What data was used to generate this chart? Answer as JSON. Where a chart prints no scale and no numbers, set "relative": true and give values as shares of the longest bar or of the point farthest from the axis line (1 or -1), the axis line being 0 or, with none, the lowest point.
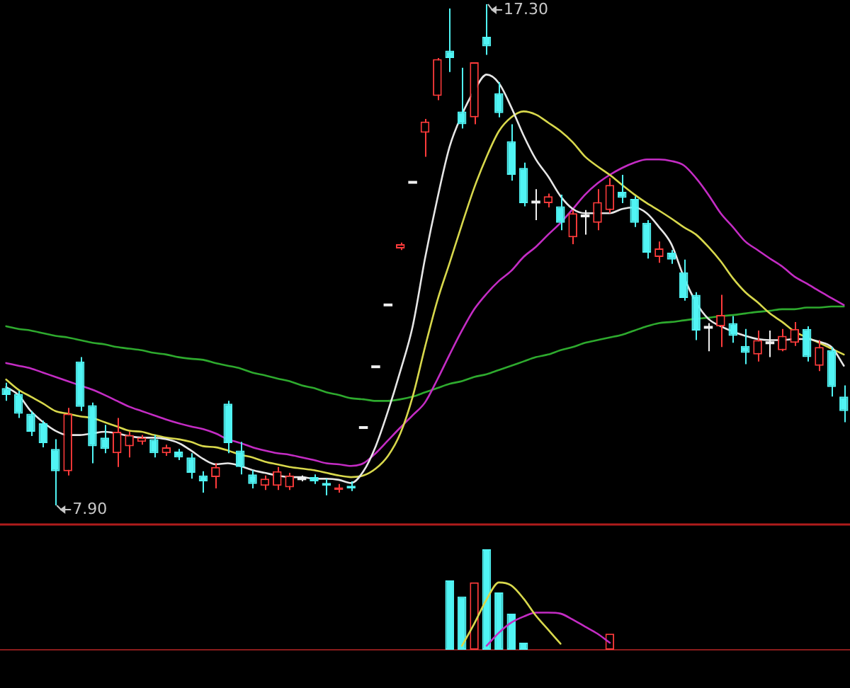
{
  "chart_data": [
    {
      "type": "candlestick",
      "categories": [
        null,
        null,
        null,
        null,
        null,
        null,
        null,
        null,
        null,
        null,
        null,
        null,
        null,
        null,
        null,
        null,
        null,
        null,
        null,
        null,
        null,
        null,
        null,
        null,
        null,
        null,
        null,
        null,
        null,
        null,
        null,
        null,
        null,
        null,
        null,
        null,
        null,
        null,
        null,
        null,
        null,
        null,
        null,
        null,
        null,
        null,
        null,
        null,
        null,
        null,
        null,
        null,
        null,
        null,
        null,
        null,
        null,
        null,
        null,
        null,
        null,
        null,
        null,
        null,
        null,
        null,
        null,
        null,
        null
      ],
      "ohlc": [
        [
          10.1,
          10.2,
          9.86,
          9.97
        ],
        [
          9.99,
          10.05,
          9.54,
          9.62
        ],
        [
          9.62,
          9.67,
          9.2,
          9.28
        ],
        [
          9.44,
          9.49,
          8.99,
          9.07
        ],
        [
          8.96,
          9.14,
          7.9,
          8.54
        ],
        [
          8.54,
          9.73,
          8.46,
          9.62
        ],
        [
          10.6,
          10.68,
          9.67,
          9.75
        ],
        [
          9.78,
          9.83,
          8.69,
          9.01
        ],
        [
          9.17,
          9.41,
          8.88,
          8.96
        ],
        [
          8.88,
          9.54,
          8.62,
          9.28
        ],
        [
          9.01,
          9.28,
          8.8,
          9.22
        ],
        [
          9.09,
          9.22,
          9.04,
          9.17
        ],
        [
          9.14,
          9.22,
          8.8,
          8.88
        ],
        [
          8.88,
          9.04,
          8.83,
          8.99
        ],
        [
          8.91,
          8.96,
          8.75,
          8.8
        ],
        [
          8.8,
          8.88,
          8.4,
          8.51
        ],
        [
          8.46,
          8.54,
          8.14,
          8.35
        ],
        [
          8.43,
          8.69,
          8.22,
          8.62
        ],
        [
          9.81,
          9.86,
          8.88,
          9.07
        ],
        [
          8.93,
          9.09,
          8.48,
          8.62
        ],
        [
          8.48,
          8.56,
          8.22,
          8.3
        ],
        [
          8.27,
          8.46,
          8.19,
          8.4
        ],
        [
          8.27,
          8.62,
          8.19,
          8.54
        ],
        [
          8.24,
          8.51,
          8.19,
          8.46
        ],
        [
          8.4,
          8.46,
          8.35,
          8.4
        ],
        [
          8.43,
          8.48,
          8.3,
          8.35
        ],
        [
          8.32,
          8.4,
          8.09,
          8.27
        ],
        [
          8.19,
          8.3,
          8.14,
          8.24
        ],
        [
          8.27,
          8.35,
          8.17,
          8.22
        ],
        [
          9.36,
          9.36,
          9.36,
          9.36
        ],
        [
          10.5,
          10.5,
          10.5,
          10.5
        ],
        [
          11.66,
          11.66,
          11.66,
          11.66
        ],
        [
          12.72,
          12.83,
          12.69,
          12.8
        ],
        [
          13.96,
          13.96,
          13.96,
          13.96
        ],
        [
          14.89,
          15.15,
          14.44,
          15.1
        ],
        [
          15.58,
          16.29,
          15.5,
          16.27
        ],
        [
          16.43,
          17.22,
          16.03,
          16.29
        ],
        [
          15.29,
          16.11,
          14.97,
          15.05
        ],
        [
          15.18,
          16.21,
          15.05,
          16.21
        ],
        [
          16.69,
          17.3,
          16.35,
          16.51
        ],
        [
          15.63,
          15.84,
          15.18,
          15.26
        ],
        [
          14.73,
          15.05,
          13.99,
          14.1
        ],
        [
          14.23,
          14.33,
          13.51,
          13.57
        ],
        [
          13.59,
          13.83,
          13.25,
          13.59
        ],
        [
          13.57,
          13.75,
          13.49,
          13.7
        ],
        [
          13.51,
          13.73,
          13.06,
          13.2
        ],
        [
          12.93,
          13.44,
          12.8,
          13.38
        ],
        [
          13.33,
          13.44,
          12.98,
          13.33
        ],
        [
          13.2,
          13.83,
          13.06,
          13.59
        ],
        [
          13.44,
          14.04,
          13.38,
          13.91
        ],
        [
          13.78,
          14.1,
          13.57,
          13.67
        ],
        [
          13.65,
          13.7,
          13.12,
          13.2
        ],
        [
          13.2,
          13.25,
          12.53,
          12.64
        ],
        [
          12.56,
          12.85,
          12.45,
          12.72
        ],
        [
          12.64,
          12.69,
          12.43,
          12.51
        ],
        [
          12.27,
          12.51,
          11.74,
          11.79
        ],
        [
          11.85,
          11.9,
          11.0,
          11.18
        ],
        [
          11.24,
          11.32,
          10.79,
          11.24
        ],
        [
          11.26,
          11.85,
          10.87,
          11.47
        ],
        [
          11.32,
          11.45,
          10.95,
          11.08
        ],
        [
          10.89,
          11.21,
          10.55,
          10.76
        ],
        [
          10.73,
          11.18,
          10.6,
          11.0
        ],
        [
          10.95,
          11.18,
          10.68,
          10.95
        ],
        [
          10.81,
          11.21,
          10.79,
          11.08
        ],
        [
          10.95,
          11.34,
          10.89,
          11.21
        ],
        [
          11.21,
          11.26,
          10.6,
          10.68
        ],
        [
          10.52,
          11.0,
          10.42,
          10.87
        ],
        [
          10.81,
          10.87,
          9.94,
          10.12
        ],
        [
          9.94,
          10.15,
          9.46,
          9.67
        ]
      ],
      "colors": [
        "#50f4f4",
        "#50f4f4",
        "#50f4f4",
        "#50f4f4",
        "#50f4f4",
        "#ff3b3b",
        "#50f4f4",
        "#50f4f4",
        "#50f4f4",
        "#ff3b3b",
        "#ff3b3b",
        "#ff3b3b",
        "#50f4f4",
        "#ff3b3b",
        "#50f4f4",
        "#50f4f4",
        "#50f4f4",
        "#ff3b3b",
        "#50f4f4",
        "#50f4f4",
        "#50f4f4",
        "#ff3b3b",
        "#ff3b3b",
        "#ff3b3b",
        "#f0f0f0",
        "#50f4f4",
        "#50f4f4",
        "#ff3b3b",
        "#50f4f4",
        "#f0f0f0",
        "#f0f0f0",
        "#f0f0f0",
        "#ff3b3b",
        "#f0f0f0",
        "#ff3b3b",
        "#ff3b3b",
        "#50f4f4",
        "#50f4f4",
        "#ff3b3b",
        "#50f4f4",
        "#50f4f4",
        "#50f4f4",
        "#50f4f4",
        "#f0f0f0",
        "#ff3b3b",
        "#50f4f4",
        "#ff3b3b",
        "#f0f0f0",
        "#ff3b3b",
        "#ff3b3b",
        "#50f4f4",
        "#50f4f4",
        "#50f4f4",
        "#ff3b3b",
        "#50f4f4",
        "#50f4f4",
        "#50f4f4",
        "#f0f0f0",
        "#ff3b3b",
        "#50f4f4",
        "#50f4f4",
        "#ff3b3b",
        "#f0f0f0",
        "#ff3b3b",
        "#ff3b3b",
        "#50f4f4",
        "#ff3b3b",
        "#50f4f4",
        "#50f4f4"
      ],
      "series": [
        {
          "type": "line",
          "color": "#e6e6e6",
          "values": [
            10.12,
            9.97,
            9.67,
            9.46,
            9.3,
            9.22,
            9.22,
            9.25,
            9.28,
            9.25,
            9.2,
            9.17,
            9.17,
            9.14,
            9.07,
            8.93,
            8.77,
            8.67,
            8.69,
            8.64,
            8.56,
            8.51,
            8.46,
            8.43,
            8.43,
            8.4,
            8.4,
            8.38,
            8.32,
            8.54,
            9.01,
            9.67,
            10.42,
            11.26,
            12.53,
            13.65,
            14.63,
            15.23,
            15.68,
            15.98,
            15.82,
            15.37,
            14.84,
            14.39,
            14.07,
            13.7,
            13.46,
            13.38,
            13.38,
            13.38,
            13.46,
            13.49,
            13.38,
            13.12,
            12.8,
            12.19,
            11.71,
            11.4,
            11.26,
            11.16,
            11.08,
            11.02,
            11.0,
            11.0,
            11.02,
            11.02,
            10.97,
            10.87,
            10.52
          ]
        },
        {
          "type": "line",
          "color": "#d8d84c",
          "values": [
            10.26,
            10.07,
            9.94,
            9.81,
            9.67,
            9.62,
            9.57,
            9.54,
            9.46,
            9.38,
            9.3,
            9.28,
            9.22,
            9.17,
            9.14,
            9.09,
            9.01,
            8.99,
            8.93,
            8.85,
            8.8,
            8.72,
            8.67,
            8.62,
            8.59,
            8.56,
            8.51,
            8.46,
            8.43,
            8.46,
            8.59,
            8.83,
            9.25,
            9.94,
            10.87,
            11.74,
            12.45,
            13.17,
            13.86,
            14.44,
            14.92,
            15.18,
            15.29,
            15.23,
            15.08,
            14.92,
            14.71,
            14.44,
            14.26,
            14.1,
            13.91,
            13.73,
            13.57,
            13.43,
            13.28,
            13.12,
            12.98,
            12.75,
            12.48,
            12.16,
            11.9,
            11.71,
            11.5,
            11.34,
            11.16,
            11.05,
            10.95,
            10.84,
            10.73
          ]
        },
        {
          "type": "line",
          "color": "#c42cc4",
          "values": [
            10.57,
            10.52,
            10.47,
            10.39,
            10.31,
            10.23,
            10.15,
            10.07,
            9.97,
            9.86,
            9.75,
            9.67,
            9.59,
            9.51,
            9.44,
            9.38,
            9.33,
            9.25,
            9.14,
            9.07,
            8.99,
            8.93,
            8.88,
            8.85,
            8.8,
            8.75,
            8.69,
            8.67,
            8.64,
            8.69,
            8.88,
            9.12,
            9.36,
            9.59,
            9.83,
            10.26,
            10.73,
            11.18,
            11.58,
            11.87,
            12.11,
            12.3,
            12.56,
            12.75,
            12.98,
            13.2,
            13.46,
            13.73,
            13.94,
            14.1,
            14.23,
            14.33,
            14.39,
            14.39,
            14.36,
            14.28,
            14.04,
            13.73,
            13.38,
            13.12,
            12.85,
            12.69,
            12.53,
            12.38,
            12.19,
            12.06,
            11.92,
            11.79,
            11.66
          ]
        },
        {
          "type": "line",
          "color": "#2eaa2e",
          "values": [
            11.26,
            11.21,
            11.18,
            11.13,
            11.08,
            11.05,
            11.0,
            10.95,
            10.92,
            10.87,
            10.84,
            10.81,
            10.76,
            10.73,
            10.68,
            10.65,
            10.63,
            10.57,
            10.52,
            10.47,
            10.39,
            10.34,
            10.28,
            10.23,
            10.15,
            10.1,
            10.02,
            9.97,
            9.91,
            9.89,
            9.86,
            9.86,
            9.89,
            9.94,
            10.02,
            10.1,
            10.18,
            10.23,
            10.31,
            10.36,
            10.44,
            10.52,
            10.6,
            10.68,
            10.73,
            10.81,
            10.87,
            10.95,
            11.0,
            11.05,
            11.1,
            11.18,
            11.26,
            11.32,
            11.34,
            11.37,
            11.4,
            11.42,
            11.45,
            11.47,
            11.5,
            11.53,
            11.55,
            11.58,
            11.58,
            11.61,
            11.61,
            11.63,
            11.63
          ]
        }
      ],
      "annotations": [
        "17.30",
        "7.90"
      ]
    },
    {
      "type": "bar",
      "relative": true,
      "categories": [
        null,
        null,
        null,
        null,
        null,
        null,
        null,
        null,
        null,
        null,
        null,
        null,
        null,
        null,
        null,
        null,
        null,
        null,
        null,
        null,
        null,
        null,
        null,
        null,
        null,
        null,
        null,
        null,
        null,
        null,
        null,
        null,
        null,
        null,
        null,
        null,
        null,
        null,
        null,
        null,
        null,
        null,
        null,
        null,
        null,
        null,
        null,
        null,
        null,
        null,
        null,
        null,
        null,
        null,
        null,
        null,
        null,
        null,
        null,
        null,
        null,
        null,
        null,
        null,
        null,
        null,
        null,
        null,
        null
      ],
      "values": [
        null,
        null,
        null,
        null,
        null,
        null,
        null,
        null,
        null,
        null,
        null,
        null,
        null,
        null,
        null,
        null,
        null,
        null,
        null,
        null,
        null,
        null,
        null,
        null,
        null,
        null,
        null,
        null,
        null,
        null,
        null,
        null,
        null,
        null,
        null,
        null,
        0.69,
        0.53,
        0.67,
        1,
        0.57,
        0.36,
        0.07,
        null,
        null,
        null,
        null,
        null,
        null,
        0.16,
        null,
        null,
        null,
        null,
        null,
        null,
        null,
        null,
        null,
        null,
        null,
        null,
        null,
        null,
        null,
        null,
        null,
        null,
        null
      ],
      "colors": [
        "#50f4f4",
        "#50f4f4",
        "#50f4f4",
        "#50f4f4",
        "#50f4f4",
        "#ff3b3b",
        "#50f4f4",
        "#50f4f4",
        "#50f4f4",
        "#ff3b3b",
        "#ff3b3b",
        "#ff3b3b",
        "#50f4f4",
        "#ff3b3b",
        "#50f4f4",
        "#50f4f4",
        "#50f4f4",
        "#ff3b3b",
        "#50f4f4",
        "#50f4f4",
        "#50f4f4",
        "#ff3b3b",
        "#ff3b3b",
        "#ff3b3b",
        "#f0f0f0",
        "#50f4f4",
        "#50f4f4",
        "#ff3b3b",
        "#50f4f4",
        "#f0f0f0",
        "#f0f0f0",
        "#f0f0f0",
        "#ff3b3b",
        "#f0f0f0",
        "#ff3b3b",
        "#ff3b3b",
        "#50f4f4",
        "#50f4f4",
        "#ff3b3b",
        "#50f4f4",
        "#50f4f4",
        "#50f4f4",
        "#50f4f4",
        "#f0f0f0",
        "#ff3b3b",
        "#50f4f4",
        "#ff3b3b",
        "#f0f0f0",
        "#ff3b3b",
        "#ff3b3b",
        "#50f4f4",
        "#50f4f4",
        "#50f4f4",
        "#ff3b3b",
        "#50f4f4",
        "#50f4f4",
        "#50f4f4",
        "#f0f0f0",
        "#ff3b3b",
        "#50f4f4",
        "#50f4f4",
        "#ff3b3b",
        "#f0f0f0",
        "#ff3b3b",
        "#ff3b3b",
        "#50f4f4",
        "#ff3b3b",
        "#50f4f4",
        "#50f4f4"
      ],
      "series": [
        {
          "type": "line",
          "color": "#d8d84c",
          "values": [
            null,
            null,
            null,
            null,
            null,
            null,
            null,
            null,
            null,
            null,
            null,
            null,
            null,
            null,
            null,
            null,
            null,
            null,
            null,
            null,
            null,
            null,
            null,
            null,
            null,
            null,
            null,
            null,
            null,
            null,
            null,
            null,
            null,
            null,
            null,
            null,
            null,
            0.04,
            0.26,
            0.5,
            0.67,
            0.64,
            0.51,
            0.34,
            0.2,
            0.06,
            null,
            null,
            null,
            null,
            null,
            null,
            null,
            null,
            null,
            null,
            null,
            null,
            null,
            null,
            null,
            null,
            null,
            null,
            null,
            null,
            null,
            null,
            null
          ]
        },
        {
          "type": "line",
          "color": "#c42cc4",
          "values": [
            null,
            null,
            null,
            null,
            null,
            null,
            null,
            null,
            null,
            null,
            null,
            null,
            null,
            null,
            null,
            null,
            null,
            null,
            null,
            null,
            null,
            null,
            null,
            null,
            null,
            null,
            null,
            null,
            null,
            null,
            null,
            null,
            null,
            null,
            null,
            null,
            null,
            null,
            null,
            0.04,
            0.17,
            0.27,
            0.33,
            0.37,
            0.37,
            0.36,
            0.3,
            0.23,
            0.16,
            0.07,
            null,
            null,
            null,
            null,
            null,
            null,
            null,
            null,
            null,
            null,
            null,
            null,
            null,
            null,
            null,
            null,
            null,
            null,
            null
          ]
        }
      ]
    }
  ]
}
